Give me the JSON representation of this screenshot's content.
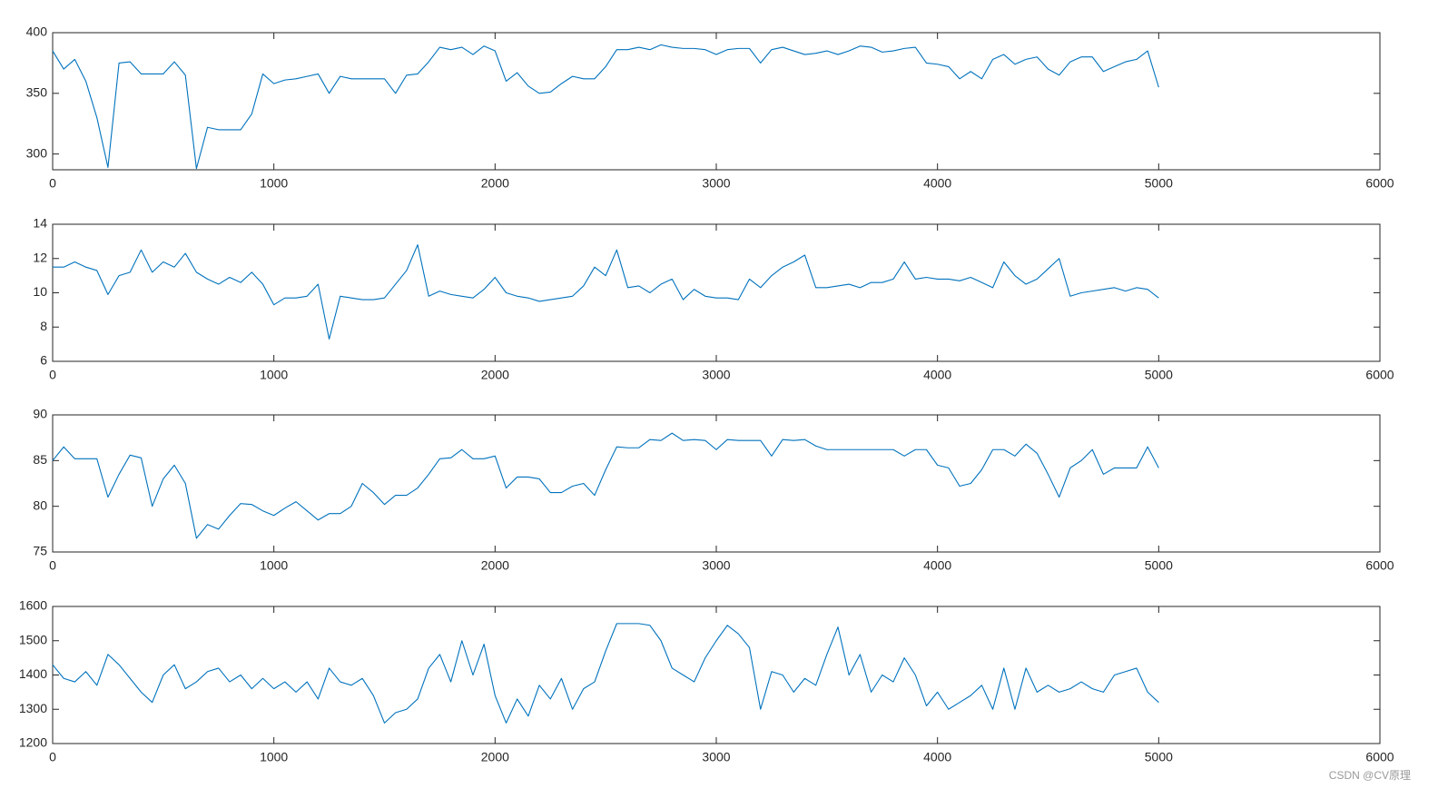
{
  "chart_data": [
    {
      "type": "line",
      "x": [
        0,
        50,
        100,
        150,
        200,
        250,
        300,
        350,
        400,
        450,
        500,
        550,
        600,
        650,
        700,
        750,
        800,
        850,
        900,
        950,
        1000,
        1050,
        1100,
        1150,
        1200,
        1250,
        1300,
        1350,
        1400,
        1450,
        1500,
        1550,
        1600,
        1650,
        1700,
        1750,
        1800,
        1850,
        1900,
        1950,
        2000,
        2050,
        2100,
        2150,
        2200,
        2250,
        2300,
        2350,
        2400,
        2450,
        2500,
        2550,
        2600,
        2650,
        2700,
        2750,
        2800,
        2850,
        2900,
        2950,
        3000,
        3050,
        3100,
        3150,
        3200,
        3250,
        3300,
        3350,
        3400,
        3450,
        3500,
        3550,
        3600,
        3650,
        3700,
        3750,
        3800,
        3850,
        3900,
        3950,
        4000,
        4050,
        4100,
        4150,
        4200,
        4250,
        4300,
        4350,
        4400,
        4450,
        4500,
        4550,
        4600,
        4650,
        4700,
        4750,
        4800,
        4850,
        4900,
        4950,
        5000
      ],
      "series": [
        {
          "color": "#0072bd",
          "values": [
            385,
            370,
            378,
            360,
            330,
            289,
            375,
            376,
            366,
            366,
            366,
            376,
            365,
            288,
            322,
            320,
            320,
            320,
            333,
            366,
            358,
            361,
            362,
            364,
            366,
            350,
            364,
            362,
            362,
            362,
            362,
            350,
            365,
            366,
            376,
            388,
            386,
            388,
            382,
            389,
            385,
            360,
            367,
            356,
            350,
            351,
            358,
            364,
            362,
            362,
            372,
            386,
            386,
            388,
            386,
            390,
            388,
            387,
            387,
            386,
            382,
            386,
            387,
            387,
            375,
            386,
            388,
            385,
            382,
            383,
            385,
            382,
            385,
            389,
            388,
            384,
            385,
            387,
            388,
            375,
            374,
            372,
            362,
            368,
            362,
            378,
            382,
            374,
            378,
            380,
            370,
            365,
            376,
            380,
            380,
            368,
            372,
            376,
            378,
            385,
            355
          ]
        }
      ],
      "xlim": [
        0,
        6000
      ],
      "xticks": [
        0,
        1000,
        2000,
        3000,
        4000,
        5000,
        6000
      ],
      "ylim": [
        287,
        400
      ],
      "yticks": [
        300,
        350,
        400
      ]
    },
    {
      "type": "line",
      "x": [
        0,
        50,
        100,
        150,
        200,
        250,
        300,
        350,
        400,
        450,
        500,
        550,
        600,
        650,
        700,
        750,
        800,
        850,
        900,
        950,
        1000,
        1050,
        1100,
        1150,
        1200,
        1250,
        1300,
        1350,
        1400,
        1450,
        1500,
        1550,
        1600,
        1650,
        1700,
        1750,
        1800,
        1850,
        1900,
        1950,
        2000,
        2050,
        2100,
        2150,
        2200,
        2250,
        2300,
        2350,
        2400,
        2450,
        2500,
        2550,
        2600,
        2650,
        2700,
        2750,
        2800,
        2850,
        2900,
        2950,
        3000,
        3050,
        3100,
        3150,
        3200,
        3250,
        3300,
        3350,
        3400,
        3450,
        3500,
        3550,
        3600,
        3650,
        3700,
        3750,
        3800,
        3850,
        3900,
        3950,
        4000,
        4050,
        4100,
        4150,
        4200,
        4250,
        4300,
        4350,
        4400,
        4450,
        4500,
        4550,
        4600,
        4650,
        4700,
        4750,
        4800,
        4850,
        4900,
        4950,
        5000
      ],
      "series": [
        {
          "color": "#0072bd",
          "values": [
            11.5,
            11.5,
            11.8,
            11.5,
            11.3,
            9.9,
            11.0,
            11.2,
            12.5,
            11.2,
            11.8,
            11.5,
            12.3,
            11.2,
            10.8,
            10.5,
            10.9,
            10.6,
            11.2,
            10.5,
            9.3,
            9.7,
            9.7,
            9.8,
            10.5,
            7.3,
            9.8,
            9.7,
            9.6,
            9.6,
            9.7,
            10.5,
            11.3,
            12.8,
            9.8,
            10.1,
            9.9,
            9.8,
            9.7,
            10.2,
            10.9,
            10.0,
            9.8,
            9.7,
            9.5,
            9.6,
            9.7,
            9.8,
            10.4,
            11.5,
            11.0,
            12.5,
            10.3,
            10.4,
            10.0,
            10.5,
            10.8,
            9.6,
            10.2,
            9.8,
            9.7,
            9.7,
            9.6,
            10.8,
            10.3,
            11.0,
            11.5,
            11.8,
            12.2,
            10.3,
            10.3,
            10.4,
            10.5,
            10.3,
            10.6,
            10.6,
            10.8,
            11.8,
            10.8,
            10.9,
            10.8,
            10.8,
            10.7,
            10.9,
            10.6,
            10.3,
            11.8,
            11.0,
            10.5,
            10.8,
            11.4,
            12.0,
            9.8,
            10.0,
            10.1,
            10.2,
            10.3,
            10.1,
            10.3,
            10.2,
            9.7
          ]
        }
      ],
      "xlim": [
        0,
        6000
      ],
      "xticks": [
        0,
        1000,
        2000,
        3000,
        4000,
        5000,
        6000
      ],
      "ylim": [
        6,
        14
      ],
      "yticks": [
        6,
        8,
        10,
        12,
        14
      ]
    },
    {
      "type": "line",
      "x": [
        0,
        50,
        100,
        150,
        200,
        250,
        300,
        350,
        400,
        450,
        500,
        550,
        600,
        650,
        700,
        750,
        800,
        850,
        900,
        950,
        1000,
        1050,
        1100,
        1150,
        1200,
        1250,
        1300,
        1350,
        1400,
        1450,
        1500,
        1550,
        1600,
        1650,
        1700,
        1750,
        1800,
        1850,
        1900,
        1950,
        2000,
        2050,
        2100,
        2150,
        2200,
        2250,
        2300,
        2350,
        2400,
        2450,
        2500,
        2550,
        2600,
        2650,
        2700,
        2750,
        2800,
        2850,
        2900,
        2950,
        3000,
        3050,
        3100,
        3150,
        3200,
        3250,
        3300,
        3350,
        3400,
        3450,
        3500,
        3550,
        3600,
        3650,
        3700,
        3750,
        3800,
        3850,
        3900,
        3950,
        4000,
        4050,
        4100,
        4150,
        4200,
        4250,
        4300,
        4350,
        4400,
        4450,
        4500,
        4550,
        4600,
        4650,
        4700,
        4750,
        4800,
        4850,
        4900,
        4950,
        5000
      ],
      "series": [
        {
          "color": "#0072bd",
          "values": [
            85,
            86.5,
            85.2,
            85.2,
            85.2,
            81,
            83.5,
            85.6,
            85.3,
            80,
            83,
            84.5,
            82.5,
            76.5,
            78,
            77.5,
            79,
            80.3,
            80.2,
            79.5,
            79,
            79.8,
            80.5,
            79.5,
            78.5,
            79.2,
            79.2,
            80,
            82.5,
            81.5,
            80.2,
            81.2,
            81.2,
            82,
            83.5,
            85.2,
            85.3,
            86.2,
            85.2,
            85.2,
            85.5,
            82,
            83.2,
            83.2,
            83,
            81.5,
            81.5,
            82.2,
            82.5,
            81.2,
            84,
            86.5,
            86.4,
            86.4,
            87.3,
            87.2,
            88,
            87.2,
            87.3,
            87.2,
            86.2,
            87.3,
            87.2,
            87.2,
            87.2,
            85.5,
            87.3,
            87.2,
            87.3,
            86.6,
            86.2,
            86.2,
            86.2,
            86.2,
            86.2,
            86.2,
            86.2,
            85.5,
            86.2,
            86.2,
            84.5,
            84.2,
            82.2,
            82.5,
            84,
            86.2,
            86.2,
            85.5,
            86.8,
            85.8,
            83.5,
            81,
            84.2,
            85,
            86.2,
            83.5,
            84.2,
            84.2,
            84.2,
            86.5,
            84.2
          ]
        }
      ],
      "xlim": [
        0,
        6000
      ],
      "xticks": [
        0,
        1000,
        2000,
        3000,
        4000,
        5000,
        6000
      ],
      "ylim": [
        75,
        90
      ],
      "yticks": [
        75,
        80,
        85,
        90
      ]
    },
    {
      "type": "line",
      "x": [
        0,
        50,
        100,
        150,
        200,
        250,
        300,
        350,
        400,
        450,
        500,
        550,
        600,
        650,
        700,
        750,
        800,
        850,
        900,
        950,
        1000,
        1050,
        1100,
        1150,
        1200,
        1250,
        1300,
        1350,
        1400,
        1450,
        1500,
        1550,
        1600,
        1650,
        1700,
        1750,
        1800,
        1850,
        1900,
        1950,
        2000,
        2050,
        2100,
        2150,
        2200,
        2250,
        2300,
        2350,
        2400,
        2450,
        2500,
        2550,
        2600,
        2650,
        2700,
        2750,
        2800,
        2850,
        2900,
        2950,
        3000,
        3050,
        3100,
        3150,
        3200,
        3250,
        3300,
        3350,
        3400,
        3450,
        3500,
        3550,
        3600,
        3650,
        3700,
        3750,
        3800,
        3850,
        3900,
        3950,
        4000,
        4050,
        4100,
        4150,
        4200,
        4250,
        4300,
        4350,
        4400,
        4450,
        4500,
        4550,
        4600,
        4650,
        4700,
        4750,
        4800,
        4850,
        4900,
        4950,
        5000
      ],
      "series": [
        {
          "color": "#0072bd",
          "values": [
            1430,
            1390,
            1380,
            1410,
            1370,
            1460,
            1430,
            1390,
            1350,
            1320,
            1400,
            1430,
            1360,
            1380,
            1410,
            1420,
            1380,
            1400,
            1360,
            1390,
            1360,
            1380,
            1350,
            1380,
            1330,
            1420,
            1380,
            1370,
            1390,
            1340,
            1260,
            1290,
            1300,
            1330,
            1420,
            1460,
            1380,
            1500,
            1400,
            1490,
            1340,
            1260,
            1330,
            1280,
            1370,
            1330,
            1390,
            1300,
            1360,
            1380,
            1470,
            1550,
            1550,
            1550,
            1545,
            1500,
            1420,
            1400,
            1380,
            1450,
            1500,
            1545,
            1520,
            1480,
            1300,
            1410,
            1400,
            1350,
            1390,
            1370,
            1460,
            1540,
            1400,
            1460,
            1350,
            1400,
            1380,
            1450,
            1400,
            1310,
            1350,
            1300,
            1320,
            1340,
            1370,
            1300,
            1420,
            1300,
            1420,
            1350,
            1370,
            1350,
            1360,
            1380,
            1360,
            1350,
            1400,
            1410,
            1420,
            1350,
            1320
          ]
        }
      ],
      "xlim": [
        0,
        6000
      ],
      "xticks": [
        0,
        1000,
        2000,
        3000,
        4000,
        5000,
        6000
      ],
      "ylim": [
        1200,
        1600
      ],
      "yticks": [
        1200,
        1300,
        1400,
        1500,
        1600
      ]
    }
  ],
  "watermark": "CSDN @CV原理"
}
